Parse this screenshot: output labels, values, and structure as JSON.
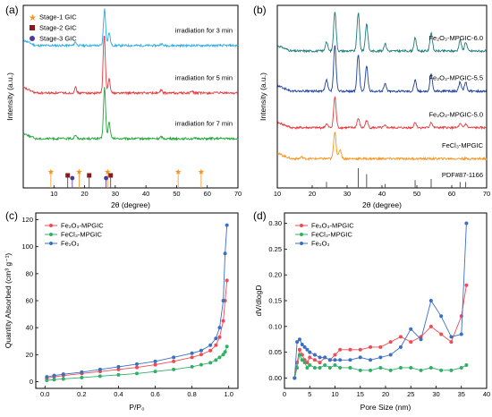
{
  "chart_data": [
    {
      "panel": "(a)",
      "type": "line",
      "xlabel": "2θ (degree)",
      "ylabel": "Intensity (a.u.)",
      "xlim": [
        0,
        70
      ],
      "xticks": [
        "10",
        "20",
        "30",
        "40",
        "50",
        "60",
        "70"
      ],
      "legend": [
        "Stage-1 GIC",
        "Stage-2 GIC",
        "Stage-3 GIC"
      ],
      "legend_colors": [
        "#f7941d",
        "#8b1a1a",
        "#4b3a9e"
      ],
      "series": [
        {
          "label": "irradiation for 3 min",
          "color": "#29abe2",
          "baseline": 0.78,
          "peaks": [
            [
              17,
              0.02
            ],
            [
              26.5,
              0.2
            ],
            [
              28,
              0.07
            ],
            [
              45,
              0.01
            ]
          ]
        },
        {
          "label": "irradiation for 5 min",
          "color": "#e8383d",
          "baseline": 0.52,
          "peaks": [
            [
              17,
              0.03
            ],
            [
              26.4,
              0.32
            ],
            [
              28,
              0.08
            ],
            [
              45,
              0.015
            ],
            [
              55,
              0.01
            ]
          ]
        },
        {
          "label": "irradiation for 7 min",
          "color": "#22a33a",
          "baseline": 0.27,
          "peaks": [
            [
              17,
              0.02
            ],
            [
              26.5,
              0.28
            ],
            [
              28,
              0.09
            ],
            [
              45,
              0.01
            ]
          ]
        }
      ],
      "markers": [
        {
          "stage": 1,
          "x": [
            9.0,
            18.2,
            27.5,
            50.5,
            58.0
          ]
        },
        {
          "stage": 2,
          "x": [
            14.5,
            21.5,
            28.5
          ]
        },
        {
          "stage": 3,
          "x": [
            16.0,
            27.0
          ]
        }
      ]
    },
    {
      "panel": "(b)",
      "type": "line",
      "xlabel": "2θ (degree)",
      "ylabel": "Intensity (a.u.)",
      "xlim": [
        10,
        70
      ],
      "xticks": [
        "10",
        "20",
        "30",
        "40",
        "50",
        "60",
        "70"
      ],
      "series": [
        {
          "label": "Fe₂O₃-MPGIC-6.0",
          "color": "#1f7a7a",
          "baseline": 0.75,
          "peaks": [
            [
              24.1,
              0.05
            ],
            [
              26.5,
              0.22
            ],
            [
              33.2,
              0.21
            ],
            [
              35.6,
              0.15
            ],
            [
              40.9,
              0.04
            ],
            [
              49.5,
              0.07
            ],
            [
              54.1,
              0.1
            ],
            [
              62.4,
              0.06
            ],
            [
              64,
              0.05
            ]
          ]
        },
        {
          "label": "Fe₂O₃-MPGIC-5.5",
          "color": "#1e3fa0",
          "baseline": 0.53,
          "peaks": [
            [
              24.1,
              0.06
            ],
            [
              26.5,
              0.25
            ],
            [
              33.2,
              0.2
            ],
            [
              35.6,
              0.14
            ],
            [
              40.9,
              0.04
            ],
            [
              49.5,
              0.06
            ],
            [
              54.1,
              0.09
            ],
            [
              62.4,
              0.05
            ],
            [
              64,
              0.05
            ]
          ]
        },
        {
          "label": "Fe₂O₃-MPGIC-5.0",
          "color": "#e8383d",
          "baseline": 0.33,
          "peaks": [
            [
              24.1,
              0.02
            ],
            [
              26.5,
              0.17
            ],
            [
              33.2,
              0.05
            ],
            [
              35.6,
              0.04
            ],
            [
              40.9,
              0.01
            ],
            [
              49.5,
              0.03
            ],
            [
              54.1,
              0.03
            ],
            [
              62.4,
              0.02
            ],
            [
              64,
              0.02
            ]
          ]
        },
        {
          "label": "FeCl₃-MPGIC",
          "color": "#f7941d",
          "baseline": 0.16,
          "peaks": [
            [
              26.5,
              0.15
            ],
            [
              28,
              0.05
            ],
            [
              17,
              0.01
            ]
          ]
        }
      ],
      "reference": {
        "label": "PDF#87-1166",
        "x": [
          24.1,
          33.2,
          35.6,
          40.9,
          49.5,
          54.1,
          62.4,
          64.0
        ],
        "h": [
          0.3,
          1.0,
          0.7,
          0.2,
          0.4,
          0.45,
          0.3,
          0.3
        ]
      }
    },
    {
      "panel": "(c)",
      "type": "line",
      "xlabel": "P/P₀",
      "ylabel": "Quantity Absorbed (cm³ g⁻¹)",
      "xlim": [
        -0.05,
        1.05
      ],
      "ylim": [
        -5,
        125
      ],
      "xticks": [
        "0.0",
        "0.2",
        "0.4",
        "0.6",
        "0.8",
        "1.0"
      ],
      "yticks": [
        "0",
        "20",
        "40",
        "60",
        "80",
        "100",
        "120"
      ],
      "series": [
        {
          "name": "Fe₂O₃-MPGIC",
          "color": "#ef4b55",
          "x": [
            0.01,
            0.05,
            0.1,
            0.2,
            0.3,
            0.4,
            0.5,
            0.6,
            0.7,
            0.8,
            0.85,
            0.9,
            0.93,
            0.95,
            0.97,
            0.98,
            0.99
          ],
          "y": [
            2.5,
            3.5,
            4.5,
            6,
            7.5,
            9,
            10.5,
            12.5,
            15,
            18,
            20,
            23,
            27,
            33,
            45,
            60,
            75
          ]
        },
        {
          "name": "FeCl₃-MPGIC",
          "color": "#2fb067",
          "x": [
            0.01,
            0.05,
            0.1,
            0.2,
            0.3,
            0.4,
            0.5,
            0.6,
            0.7,
            0.8,
            0.85,
            0.9,
            0.93,
            0.95,
            0.97,
            0.98,
            0.99
          ],
          "y": [
            1,
            1.5,
            2,
            3,
            4,
            5,
            6,
            7.5,
            9,
            11,
            12.5,
            14,
            16,
            18,
            20,
            22,
            26
          ]
        },
        {
          "name": "Fe₂O₃",
          "color": "#3a6fc4",
          "x": [
            0.01,
            0.05,
            0.1,
            0.2,
            0.3,
            0.4,
            0.5,
            0.6,
            0.7,
            0.8,
            0.85,
            0.9,
            0.93,
            0.95,
            0.97,
            0.98,
            0.99
          ],
          "y": [
            3.5,
            4.5,
            5.5,
            7,
            9,
            11,
            13,
            15,
            18,
            21,
            23,
            27,
            32,
            40,
            60,
            95,
            116
          ]
        }
      ]
    },
    {
      "panel": "(d)",
      "type": "line",
      "xlabel": "Pore Size (nm)",
      "ylabel": "dV/dlogD",
      "xlim": [
        0,
        40
      ],
      "ylim": [
        -0.02,
        0.32
      ],
      "xticks": [
        "0",
        "5",
        "10",
        "15",
        "20",
        "25",
        "30",
        "35",
        "40"
      ],
      "yticks": [
        "0.00",
        "0.05",
        "0.10",
        "0.15",
        "0.20",
        "0.25",
        "0.30"
      ],
      "series": [
        {
          "name": "Fe₂O₃-MPGIC",
          "color": "#ef4b55",
          "x": [
            2,
            2.5,
            3,
            3.5,
            4,
            4.5,
            5,
            6,
            7,
            8,
            9,
            10,
            11,
            13,
            15,
            17,
            19,
            21,
            23,
            25,
            27,
            29,
            31,
            33,
            35,
            36
          ],
          "y": [
            0.0,
            0.03,
            0.055,
            0.045,
            0.035,
            0.03,
            0.04,
            0.035,
            0.03,
            0.04,
            0.035,
            0.045,
            0.055,
            0.055,
            0.055,
            0.06,
            0.06,
            0.07,
            0.08,
            0.07,
            0.08,
            0.1,
            0.085,
            0.07,
            0.12,
            0.18
          ]
        },
        {
          "name": "FeCl₃-MPGIC",
          "color": "#2fb067",
          "x": [
            2,
            2.5,
            3,
            3.5,
            4,
            4.5,
            5,
            6,
            7,
            8,
            9,
            10,
            11,
            13,
            15,
            17,
            19,
            21,
            23,
            25,
            27,
            29,
            31,
            33,
            35,
            36
          ],
          "y": [
            0.0,
            0.02,
            0.045,
            0.035,
            0.03,
            0.02,
            0.025,
            0.02,
            0.02,
            0.025,
            0.02,
            0.025,
            0.02,
            0.02,
            0.015,
            0.015,
            0.02,
            0.015,
            0.02,
            0.02,
            0.015,
            0.02,
            0.015,
            0.015,
            0.02,
            0.025
          ]
        },
        {
          "name": "Fe₂O₃",
          "color": "#3a6fc4",
          "x": [
            2,
            2.5,
            3,
            3.5,
            4,
            4.5,
            5,
            6,
            7,
            8,
            9,
            10,
            11,
            13,
            15,
            17,
            19,
            21,
            23,
            25,
            27,
            29,
            31,
            33,
            35,
            36
          ],
          "y": [
            0.0,
            0.07,
            0.075,
            0.065,
            0.06,
            0.055,
            0.05,
            0.045,
            0.04,
            0.04,
            0.035,
            0.035,
            0.035,
            0.035,
            0.04,
            0.035,
            0.04,
            0.045,
            0.06,
            0.095,
            0.075,
            0.15,
            0.12,
            0.08,
            0.085,
            0.3
          ]
        }
      ]
    }
  ]
}
